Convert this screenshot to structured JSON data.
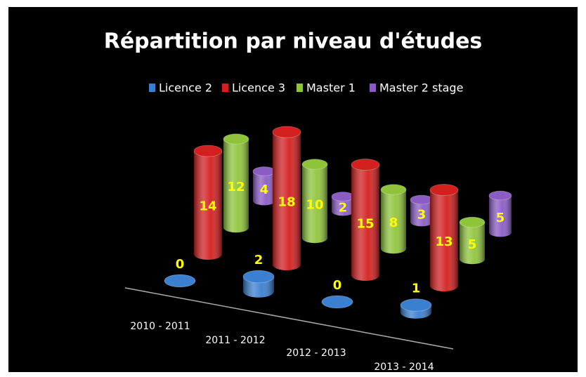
{
  "chart_data": {
    "type": "bar3d",
    "title": "Répartition par niveau d'études",
    "categories": [
      "2010 - 2011",
      "2011 - 2012",
      "2012 - 2013",
      "2013 - 2014"
    ],
    "series": [
      {
        "name": "Licence 2",
        "color": "#3b7fd0",
        "values": [
          0,
          2,
          0,
          1
        ]
      },
      {
        "name": "Licence 3",
        "color": "#d41f1f",
        "values": [
          14,
          18,
          15,
          13
        ]
      },
      {
        "name": "Master 1",
        "color": "#8fc43a",
        "values": [
          12,
          10,
          8,
          5
        ]
      },
      {
        "name": "Master 2 stage",
        "color": "#8a5cc4",
        "values": [
          4,
          2,
          3,
          5
        ]
      }
    ],
    "legend": "top"
  }
}
